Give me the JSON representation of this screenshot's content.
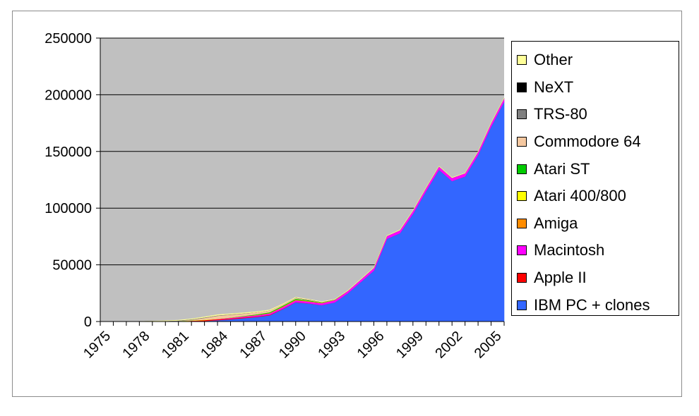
{
  "chart_data": {
    "type": "area",
    "stacked": true,
    "title": "",
    "xlabel": "",
    "ylabel": "",
    "x": [
      1975,
      1976,
      1977,
      1978,
      1979,
      1980,
      1981,
      1982,
      1983,
      1984,
      1985,
      1986,
      1987,
      1988,
      1989,
      1990,
      1991,
      1992,
      1993,
      1994,
      1995,
      1996,
      1997,
      1998,
      1999,
      2000,
      2001,
      2002,
      2003,
      2004,
      2005,
      2006
    ],
    "x_tick_labels": [
      "1975",
      "1978",
      "1981",
      "1984",
      "1987",
      "1990",
      "1993",
      "1996",
      "1999",
      "2002",
      "2005"
    ],
    "ylim": [
      0,
      250000
    ],
    "y_ticks": [
      0,
      50000,
      100000,
      150000,
      200000,
      250000
    ],
    "y_tick_labels": [
      "0",
      "50000",
      "100000",
      "150000",
      "200000",
      "250000"
    ],
    "grid": "horizontal",
    "legend_position": "right",
    "plot_background": "#c0c0c0",
    "series": [
      {
        "name": "IBM PC + clones",
        "color": "#3366ff",
        "values": [
          0,
          0,
          0,
          0,
          0,
          0,
          0,
          100,
          500,
          1200,
          2000,
          3000,
          4000,
          5500,
          11000,
          17000,
          16000,
          14500,
          17000,
          25000,
          35000,
          45000,
          73000,
          78000,
          95000,
          115000,
          134000,
          124000,
          128000,
          147000,
          172000,
          194000
        ]
      },
      {
        "name": "Apple II",
        "color": "#ff0000",
        "values": [
          0,
          0,
          0,
          0,
          50,
          150,
          300,
          600,
          800,
          800,
          700,
          600,
          500,
          400,
          300,
          200,
          100,
          50,
          0,
          0,
          0,
          0,
          0,
          0,
          0,
          0,
          0,
          0,
          0,
          0,
          0,
          0
        ]
      },
      {
        "name": "Macintosh",
        "color": "#ff00ff",
        "values": [
          0,
          0,
          0,
          0,
          0,
          0,
          0,
          0,
          0,
          300,
          500,
          800,
          1000,
          1200,
          1400,
          1500,
          1500,
          1600,
          1800,
          2000,
          2200,
          2400,
          2500,
          2600,
          2700,
          2800,
          2900,
          2800,
          2800,
          2900,
          3000,
          3000
        ]
      },
      {
        "name": "Amiga",
        "color": "#ff8c00",
        "values": [
          0,
          0,
          0,
          0,
          0,
          0,
          0,
          0,
          0,
          0,
          100,
          200,
          300,
          400,
          500,
          600,
          500,
          400,
          300,
          100,
          0,
          0,
          0,
          0,
          0,
          0,
          0,
          0,
          0,
          0,
          0,
          0
        ]
      },
      {
        "name": "Atari 400/800",
        "color": "#ffff00",
        "values": [
          0,
          0,
          0,
          0,
          50,
          100,
          200,
          300,
          300,
          200,
          100,
          50,
          0,
          0,
          0,
          0,
          0,
          0,
          0,
          0,
          0,
          0,
          0,
          0,
          0,
          0,
          0,
          0,
          0,
          0,
          0,
          0
        ]
      },
      {
        "name": "Atari ST",
        "color": "#00cc00",
        "values": [
          0,
          0,
          0,
          0,
          0,
          0,
          0,
          0,
          0,
          0,
          100,
          300,
          500,
          700,
          800,
          800,
          600,
          300,
          100,
          0,
          0,
          0,
          0,
          0,
          0,
          0,
          0,
          0,
          0,
          0,
          0,
          0
        ]
      },
      {
        "name": "Commodore 64",
        "color": "#f5c8a0",
        "values": [
          0,
          0,
          0,
          0,
          0,
          0,
          0,
          500,
          1500,
          2500,
          2500,
          2000,
          1800,
          1500,
          1000,
          800,
          500,
          300,
          100,
          0,
          0,
          0,
          0,
          0,
          0,
          0,
          0,
          0,
          0,
          0,
          0,
          0
        ]
      },
      {
        "name": "TRS-80",
        "color": "#808080",
        "values": [
          0,
          0,
          0,
          50,
          150,
          250,
          400,
          500,
          500,
          400,
          300,
          200,
          100,
          50,
          0,
          0,
          0,
          0,
          0,
          0,
          0,
          0,
          0,
          0,
          0,
          0,
          0,
          0,
          0,
          0,
          0,
          0
        ]
      },
      {
        "name": "NeXT",
        "color": "#000000",
        "values": [
          0,
          0,
          0,
          0,
          0,
          0,
          0,
          0,
          0,
          0,
          0,
          0,
          0,
          0,
          50,
          100,
          150,
          100,
          50,
          0,
          0,
          0,
          0,
          0,
          0,
          0,
          0,
          0,
          0,
          0,
          0,
          0
        ]
      },
      {
        "name": "Other",
        "color": "#ffff99",
        "values": [
          0,
          0,
          0,
          50,
          100,
          200,
          300,
          400,
          500,
          600,
          600,
          600,
          500,
          500,
          400,
          400,
          300,
          300,
          200,
          200,
          200,
          200,
          200,
          200,
          200,
          200,
          200,
          200,
          200,
          200,
          200,
          200
        ]
      }
    ]
  }
}
